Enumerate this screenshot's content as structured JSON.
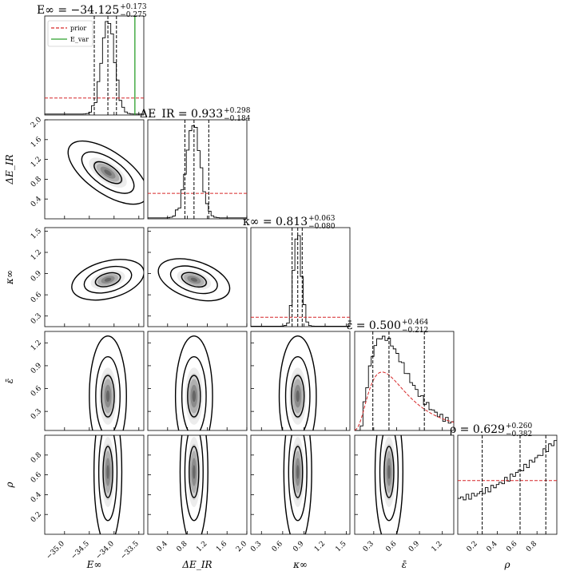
{
  "chart_data": {
    "type": "corner",
    "parameters": [
      {
        "key": "Einf",
        "axis_label": "E∞",
        "range": [
          -35.4,
          -33.4
        ],
        "ticks": [
          -35.0,
          -34.5,
          -34.0,
          -33.5
        ],
        "tick_labels": [
          "−35.0",
          "−34.5",
          "−34.0",
          "−33.5"
        ],
        "title_main": "E∞ = −34.125",
        "title_plus": "+0.173",
        "title_minus": "−0.275",
        "median": -34.125,
        "q_low": -34.4,
        "q_high": -33.952,
        "prior_level": 0.2,
        "extra_line": -33.58
      },
      {
        "key": "dEIR",
        "axis_label": "ΔE_IR",
        "range": [
          0.0,
          2.0
        ],
        "ticks": [
          0.4,
          0.8,
          1.2,
          1.6,
          2.0
        ],
        "tick_labels": [
          "0.4",
          "0.8",
          "1.2",
          "1.6",
          "2.0"
        ],
        "ylabel_ticks": [
          "0.4",
          "0.8",
          "1.2",
          "1.6",
          "2.0"
        ],
        "title_main": "ΔE_IR = 0.933",
        "title_plus": "+0.298",
        "title_minus": "−0.184",
        "median": 0.933,
        "q_low": 0.749,
        "q_high": 1.231,
        "prior_level": 0.27
      },
      {
        "key": "kappa",
        "axis_label": "κ∞",
        "range": [
          0.15,
          1.55
        ],
        "ticks": [
          0.3,
          0.6,
          0.9,
          1.2,
          1.5
        ],
        "tick_labels": [
          "0.3",
          "0.6",
          "0.9",
          "1.2",
          "1.5"
        ],
        "title_main": "κ∞ = 0.813",
        "title_plus": "+0.063",
        "title_minus": "−0.080",
        "median": 0.813,
        "q_low": 0.733,
        "q_high": 0.876,
        "prior_level": 0.1
      },
      {
        "key": "eps",
        "axis_label": "ε̄",
        "range": [
          0.05,
          1.35
        ],
        "ticks": [
          0.3,
          0.6,
          0.9,
          1.2
        ],
        "tick_labels": [
          "0.3",
          "0.6",
          "0.9",
          "1.2"
        ],
        "title_main": "ε̄ = 0.500",
        "title_plus": "+0.464",
        "title_minus": "−0.212",
        "median": 0.5,
        "q_low": 0.288,
        "q_high": 0.964
      },
      {
        "key": "rho",
        "axis_label": "ρ",
        "range": [
          0.0,
          1.0
        ],
        "ticks": [
          0.2,
          0.4,
          0.6,
          0.8
        ],
        "tick_labels": [
          "0.2",
          "0.4",
          "0.6",
          "0.8"
        ],
        "title_main": "ρ = 0.629",
        "title_plus": "+0.260",
        "title_minus": "−0.382",
        "median": 0.629,
        "q_low": 0.247,
        "q_high": 0.889,
        "prior_level": 0.53
      }
    ],
    "legend": [
      {
        "label": "prior",
        "color": "#d62728",
        "style": "dashed"
      },
      {
        "label": "E_var",
        "color": "#2ca02c",
        "style": "solid"
      }
    ],
    "colors": {
      "prior": "#d62728",
      "extra": "#2ca02c",
      "hist": "#000000"
    }
  }
}
